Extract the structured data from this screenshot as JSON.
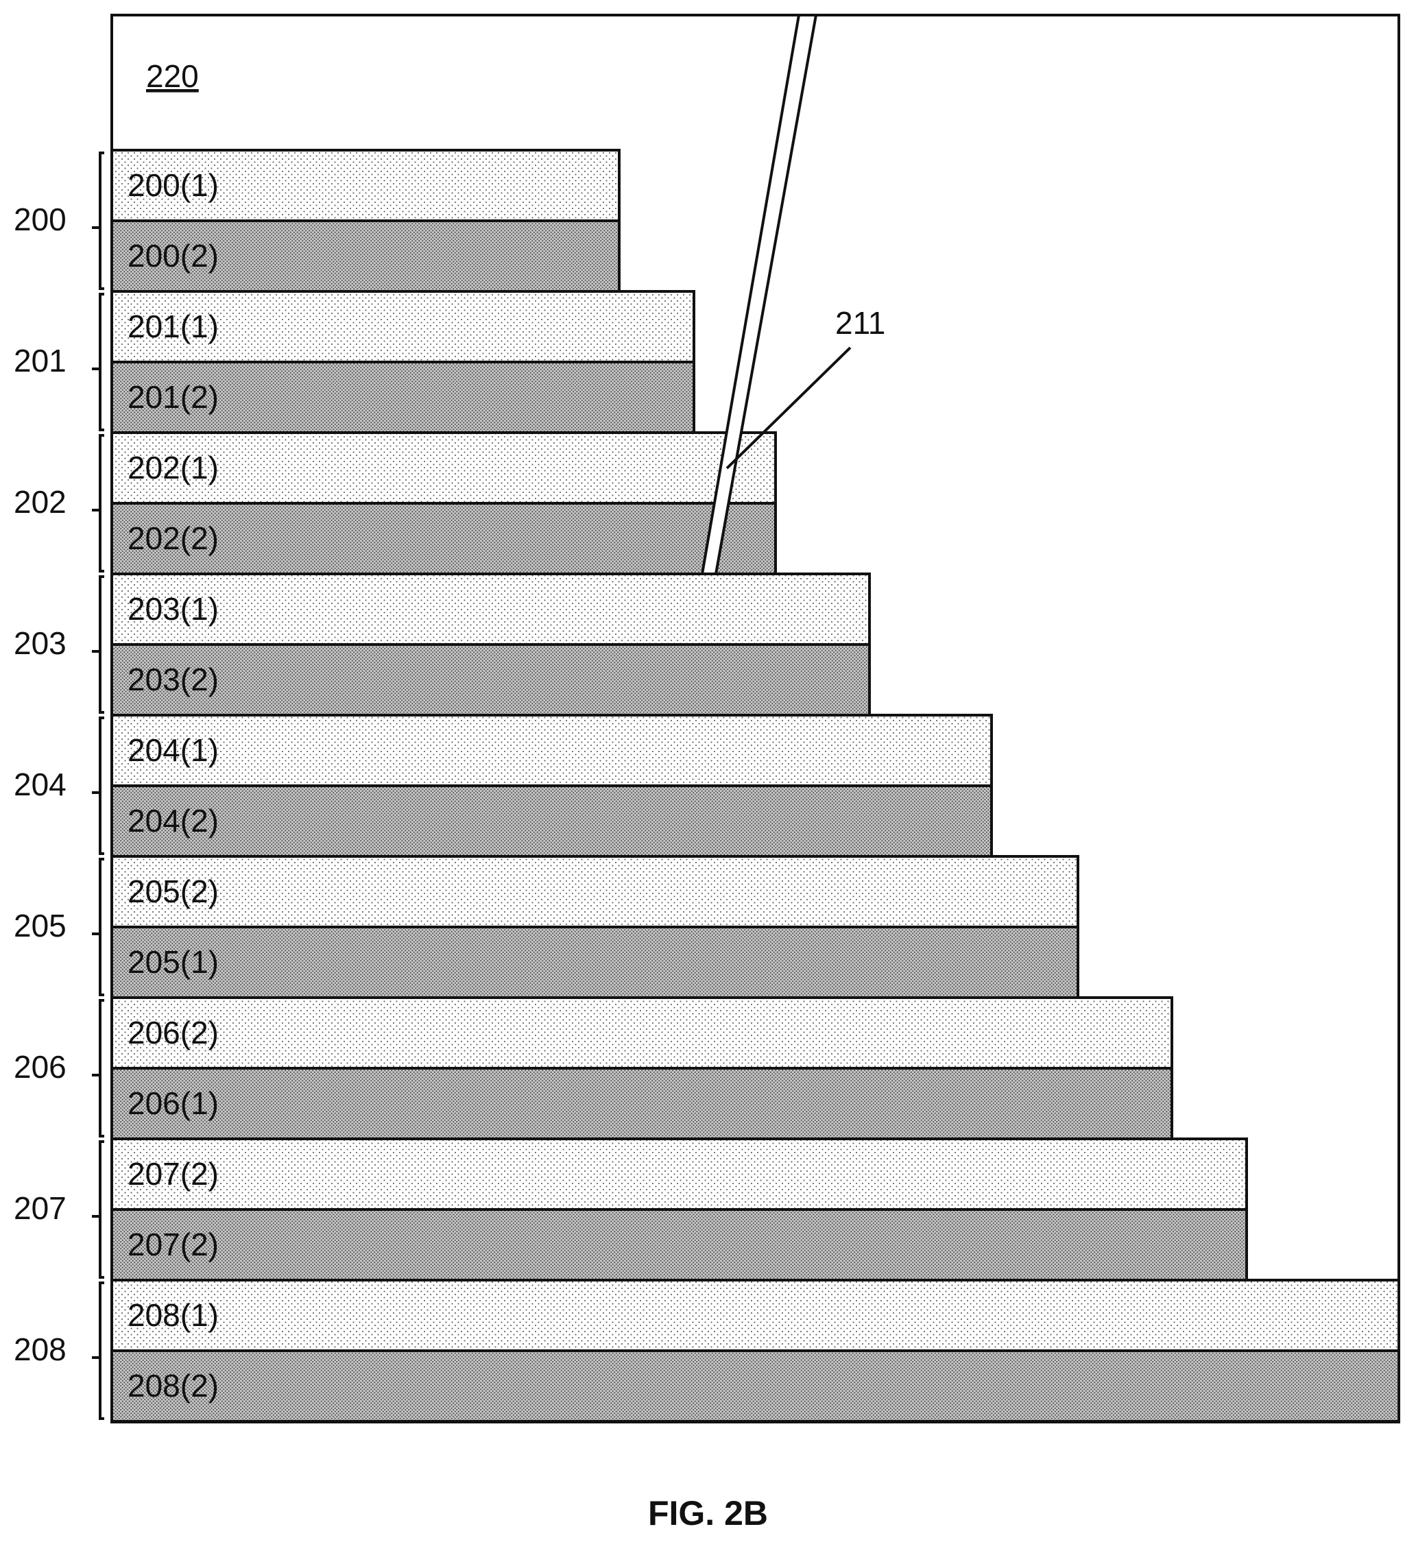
{
  "figure": {
    "caption": "FIG. 2B",
    "region_label": "220",
    "via_label": "211",
    "groups": [
      {
        "label": "200",
        "layers": [
          {
            "label": "200(1)",
            "pattern": "light"
          },
          {
            "label": "200(2)",
            "pattern": "dark"
          }
        ]
      },
      {
        "label": "201",
        "layers": [
          {
            "label": "201(1)",
            "pattern": "light"
          },
          {
            "label": "201(2)",
            "pattern": "dark"
          }
        ]
      },
      {
        "label": "202",
        "layers": [
          {
            "label": "202(1)",
            "pattern": "light"
          },
          {
            "label": "202(2)",
            "pattern": "dark"
          }
        ]
      },
      {
        "label": "203",
        "layers": [
          {
            "label": "203(1)",
            "pattern": "light"
          },
          {
            "label": "203(2)",
            "pattern": "dark"
          }
        ]
      },
      {
        "label": "204",
        "layers": [
          {
            "label": "204(1)",
            "pattern": "light"
          },
          {
            "label": "204(2)",
            "pattern": "dark"
          }
        ]
      },
      {
        "label": "205",
        "layers": [
          {
            "label": "205(2)",
            "pattern": "light"
          },
          {
            "label": "205(1)",
            "pattern": "dark"
          }
        ]
      },
      {
        "label": "206",
        "layers": [
          {
            "label": "206(2)",
            "pattern": "light"
          },
          {
            "label": "206(1)",
            "pattern": "dark"
          }
        ]
      },
      {
        "label": "207",
        "layers": [
          {
            "label": "207(2)",
            "pattern": "light"
          },
          {
            "label": "207(2)",
            "pattern": "dark"
          }
        ]
      },
      {
        "label": "208",
        "layers": [
          {
            "label": "208(1)",
            "pattern": "light"
          },
          {
            "label": "208(2)",
            "pattern": "dark"
          }
        ]
      }
    ]
  }
}
